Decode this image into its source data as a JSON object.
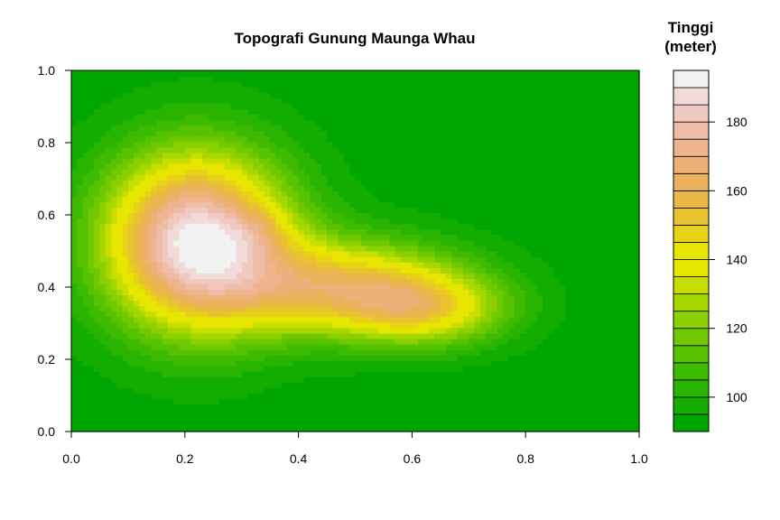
{
  "chart_data": {
    "type": "heatmap",
    "title": "Topografi Gunung Maunga Whau",
    "xlabel": "",
    "ylabel": "",
    "xlim": [
      0,
      1
    ],
    "ylim": [
      0,
      1
    ],
    "x_ticks": [
      "0.0",
      "0.2",
      "0.4",
      "0.6",
      "0.8",
      "1.0"
    ],
    "y_ticks": [
      "0.0",
      "0.2",
      "0.4",
      "0.6",
      "0.8",
      "1.0"
    ],
    "colorbar": {
      "title_line1": "Tinggi",
      "title_line2": "(meter)",
      "range": [
        90,
        195
      ],
      "step": 5,
      "ticks": [
        "100",
        "120",
        "140",
        "160",
        "180"
      ],
      "tick_values": [
        100,
        120,
        140,
        160,
        180
      ]
    },
    "surface": {
      "base": 92,
      "peaks": [
        {
          "x": 0.22,
          "y": 0.53,
          "h": 100,
          "sx": 0.16,
          "sy": 0.24
        },
        {
          "x": 0.33,
          "y": 0.55,
          "h": 10,
          "sx": 0.06,
          "sy": 0.06
        },
        {
          "x": 0.48,
          "y": 0.4,
          "h": 60,
          "sx": 0.2,
          "sy": 0.13
        },
        {
          "x": 0.63,
          "y": 0.34,
          "h": 40,
          "sx": 0.14,
          "sy": 0.1
        }
      ]
    }
  }
}
